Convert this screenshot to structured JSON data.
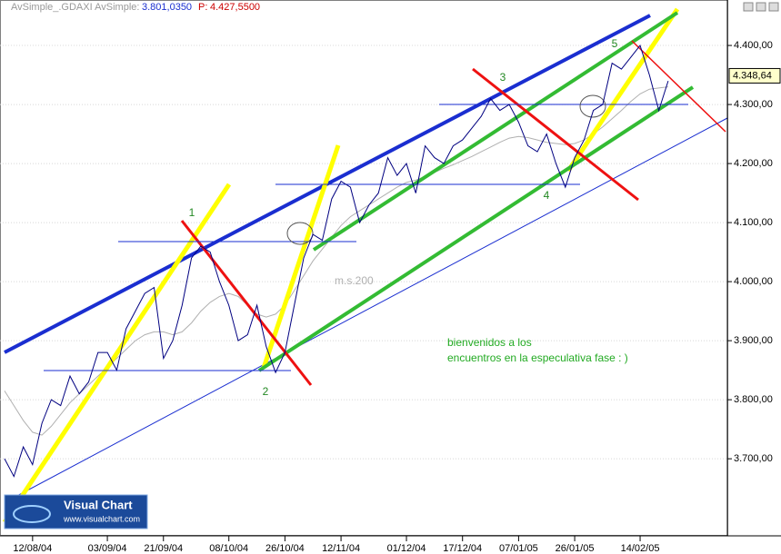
{
  "chart_data": {
    "type": "line",
    "header": {
      "instrument": "AvSimple_.GDAXI AvSimple:",
      "value": "3.801,0350",
      "p_label": "P:",
      "p_value": "4.427,5500"
    },
    "categories": [
      null,
      null,
      null,
      "12/08/04",
      null,
      null,
      null,
      null,
      null,
      null,
      null,
      "03/09/04",
      null,
      null,
      null,
      null,
      null,
      "21/09/04",
      null,
      null,
      null,
      null,
      null,
      null,
      "08/10/04",
      null,
      null,
      null,
      null,
      null,
      "26/10/04",
      null,
      null,
      null,
      null,
      null,
      "12/11/04",
      null,
      null,
      null,
      null,
      null,
      null,
      "01/12/04",
      null,
      null,
      null,
      null,
      null,
      "17/12/04",
      null,
      null,
      null,
      null,
      null,
      "07/01/05",
      null,
      null,
      null,
      null,
      null,
      "26/01/05",
      null,
      null,
      null,
      null,
      null,
      null,
      "14/02/05",
      null,
      null,
      null
    ],
    "series": [
      {
        "name": "GDAXI",
        "color": "#000080",
        "width": 1,
        "values": [
          3700,
          3670,
          3720,
          3690,
          3760,
          3800,
          3790,
          3840,
          3810,
          3830,
          3880,
          3880,
          3850,
          3920,
          3950,
          3980,
          3990,
          3870,
          3900,
          3960,
          4040,
          4060,
          4050,
          4000,
          3960,
          3900,
          3910,
          3960,
          3890,
          3846,
          3880,
          3960,
          4040,
          4080,
          4070,
          4140,
          4170,
          4160,
          4100,
          4130,
          4150,
          4210,
          4180,
          4200,
          4150,
          4230,
          4210,
          4200,
          4230,
          4240,
          4260,
          4280,
          4310,
          4290,
          4300,
          4270,
          4230,
          4220,
          4250,
          4200,
          4160,
          4210,
          4240,
          4290,
          4300,
          4370,
          4360,
          4380,
          4400,
          4350,
          4290,
          4340
        ]
      },
      {
        "name": "m.s.200",
        "color": "#b0b0b0",
        "width": 1,
        "values": [
          3815,
          3790,
          3765,
          3745,
          3740,
          3755,
          3775,
          3795,
          3810,
          3825,
          3840,
          3855,
          3870,
          3885,
          3900,
          3910,
          3915,
          3915,
          3910,
          3915,
          3930,
          3950,
          3965,
          3975,
          3980,
          3975,
          3960,
          3945,
          3940,
          3945,
          3960,
          3985,
          4010,
          4035,
          4055,
          4075,
          4095,
          4110,
          4120,
          4130,
          4140,
          4150,
          4160,
          4168,
          4172,
          4178,
          4185,
          4192,
          4198,
          4205,
          4212,
          4220,
          4228,
          4236,
          4243,
          4246,
          4244,
          4240,
          4236,
          4234,
          4232,
          4234,
          4240,
          4250,
          4262,
          4276,
          4290,
          4305,
          4318,
          4326,
          4328,
          4330
        ]
      }
    ],
    "ylim": [
      3571,
      4477
    ],
    "yticks": [
      {
        "value": 3700,
        "label": "3.700,00"
      },
      {
        "value": 3800,
        "label": "3.800,00"
      },
      {
        "value": 3900,
        "label": "3.900,00"
      },
      {
        "value": 4000,
        "label": "4.000,00"
      },
      {
        "value": 4100,
        "label": "4.100,00"
      },
      {
        "value": 4200,
        "label": "4.200,00"
      },
      {
        "value": 4300,
        "label": "4.300,00"
      },
      {
        "value": 4400,
        "label": "4.400,00"
      }
    ],
    "price_tag": {
      "value": 4348.64,
      "label": "4.348,64"
    },
    "annotations": [
      "1",
      "2",
      "3",
      "4",
      "5",
      "m.s.200",
      "bienvenidos a los",
      "encuentros en la especulativa fase : )"
    ],
    "logo": {
      "title": "Visual Chart",
      "url": "www.visualchart.com"
    }
  }
}
